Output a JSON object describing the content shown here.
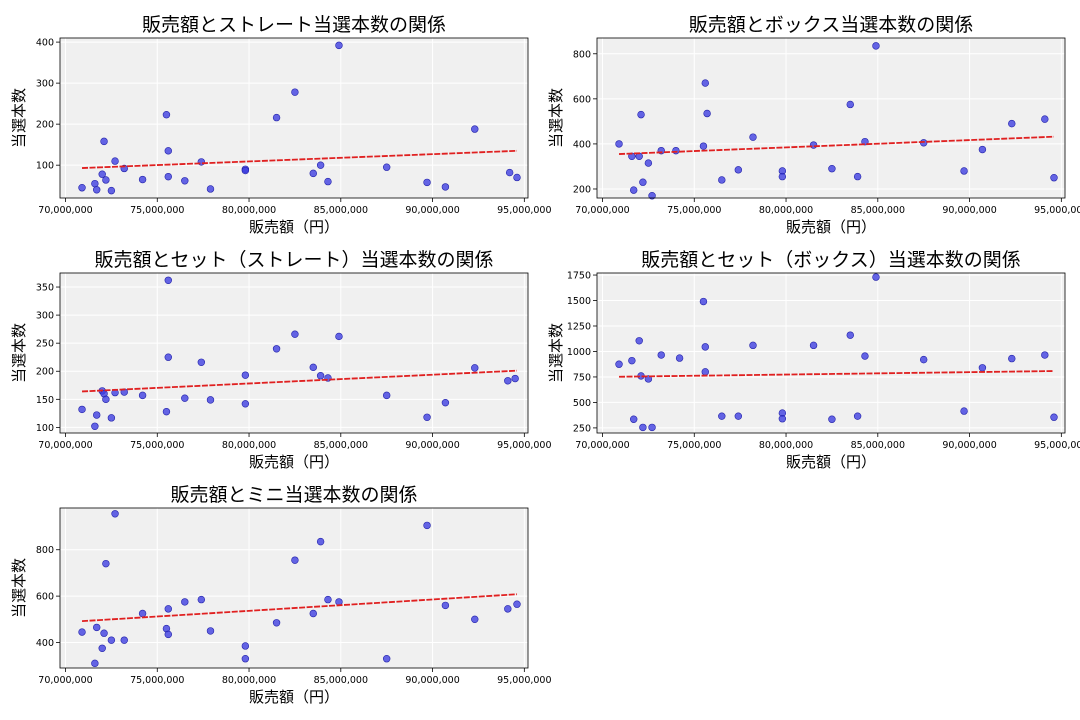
{
  "chart_data": [
    {
      "type": "scatter",
      "title": "販売額とストレート当選本数の関係",
      "xlabel": "販売額（円）",
      "ylabel": "当選本数",
      "xlim": [
        69700000,
        95200000
      ],
      "ylim": [
        20,
        410
      ],
      "xticks": [
        70000000,
        75000000,
        80000000,
        85000000,
        90000000,
        95000000
      ],
      "xtick_labels": [
        "70,000,000",
        "75,000,000",
        "80,000,000",
        "85,000,000",
        "90,000,000",
        "95,000,000"
      ],
      "yticks": [
        100,
        200,
        300,
        400
      ],
      "ytick_labels": [
        "100",
        "200",
        "300",
        "400"
      ],
      "grid": true,
      "points": [
        [
          70900000,
          45
        ],
        [
          71600000,
          55
        ],
        [
          71700000,
          40
        ],
        [
          72000000,
          78
        ],
        [
          72100000,
          158
        ],
        [
          72200000,
          64
        ],
        [
          72500000,
          38
        ],
        [
          72700000,
          110
        ],
        [
          73200000,
          92
        ],
        [
          74200000,
          65
        ],
        [
          75500000,
          223
        ],
        [
          75600000,
          135
        ],
        [
          75600000,
          72
        ],
        [
          76500000,
          62
        ],
        [
          77400000,
          108
        ],
        [
          77900000,
          42
        ],
        [
          79800000,
          90
        ],
        [
          79800000,
          87
        ],
        [
          81500000,
          216
        ],
        [
          82500000,
          278
        ],
        [
          83500000,
          80
        ],
        [
          83900000,
          100
        ],
        [
          84300000,
          60
        ],
        [
          84900000,
          392
        ],
        [
          87500000,
          95
        ],
        [
          89700000,
          58
        ],
        [
          90700000,
          47
        ],
        [
          92300000,
          188
        ],
        [
          94200000,
          82
        ],
        [
          94600000,
          70
        ]
      ],
      "trend": [
        [
          70900000,
          93
        ],
        [
          94600000,
          135
        ]
      ]
    },
    {
      "type": "scatter",
      "title": "販売額とボックス当選本数の関係",
      "xlabel": "販売額（円）",
      "ylabel": "当選本数",
      "xlim": [
        69700000,
        95200000
      ],
      "ylim": [
        160,
        870
      ],
      "xticks": [
        70000000,
        75000000,
        80000000,
        85000000,
        90000000,
        95000000
      ],
      "xtick_labels": [
        "70,000,000",
        "75,000,000",
        "80,000,000",
        "85,000,000",
        "90,000,000",
        "95,000,000"
      ],
      "yticks": [
        200,
        400,
        600,
        800
      ],
      "ytick_labels": [
        "200",
        "400",
        "600",
        "800"
      ],
      "grid": true,
      "points": [
        [
          70900000,
          400
        ],
        [
          71600000,
          345
        ],
        [
          71700000,
          195
        ],
        [
          72000000,
          345
        ],
        [
          72100000,
          530
        ],
        [
          72200000,
          230
        ],
        [
          72500000,
          315
        ],
        [
          72700000,
          170
        ],
        [
          73200000,
          370
        ],
        [
          74000000,
          370
        ],
        [
          75500000,
          390
        ],
        [
          75600000,
          670
        ],
        [
          75700000,
          535
        ],
        [
          76500000,
          240
        ],
        [
          77400000,
          285
        ],
        [
          78200000,
          430
        ],
        [
          79800000,
          280
        ],
        [
          79800000,
          255
        ],
        [
          81500000,
          395
        ],
        [
          82500000,
          290
        ],
        [
          83500000,
          575
        ],
        [
          83900000,
          255
        ],
        [
          84300000,
          410
        ],
        [
          84900000,
          835
        ],
        [
          87500000,
          405
        ],
        [
          89700000,
          280
        ],
        [
          90700000,
          375
        ],
        [
          92300000,
          490
        ],
        [
          94100000,
          510
        ],
        [
          94600000,
          250
        ]
      ],
      "trend": [
        [
          70900000,
          355
        ],
        [
          94600000,
          432
        ]
      ]
    },
    {
      "type": "scatter",
      "title": "販売額とセット（ストレート）当選本数の関係",
      "xlabel": "販売額（円）",
      "ylabel": "当選本数",
      "xlim": [
        69700000,
        95200000
      ],
      "ylim": [
        90,
        375
      ],
      "xticks": [
        70000000,
        75000000,
        80000000,
        85000000,
        90000000,
        95000000
      ],
      "xtick_labels": [
        "70,000,000",
        "75,000,000",
        "80,000,000",
        "85,000,000",
        "90,000,000",
        "95,000,000"
      ],
      "yticks": [
        100,
        150,
        200,
        250,
        300,
        350
      ],
      "ytick_labels": [
        "100",
        "150",
        "200",
        "250",
        "300",
        "350"
      ],
      "grid": true,
      "points": [
        [
          70900000,
          132
        ],
        [
          71600000,
          102
        ],
        [
          71700000,
          122
        ],
        [
          72000000,
          165
        ],
        [
          72100000,
          160
        ],
        [
          72200000,
          150
        ],
        [
          72500000,
          117
        ],
        [
          72700000,
          162
        ],
        [
          73200000,
          163
        ],
        [
          74200000,
          157
        ],
        [
          75500000,
          128
        ],
        [
          75600000,
          225
        ],
        [
          75600000,
          362
        ],
        [
          76500000,
          152
        ],
        [
          77400000,
          216
        ],
        [
          77900000,
          149
        ],
        [
          79800000,
          193
        ],
        [
          79800000,
          142
        ],
        [
          81500000,
          240
        ],
        [
          82500000,
          266
        ],
        [
          83500000,
          207
        ],
        [
          83900000,
          192
        ],
        [
          84300000,
          188
        ],
        [
          84900000,
          262
        ],
        [
          87500000,
          157
        ],
        [
          89700000,
          118
        ],
        [
          90700000,
          144
        ],
        [
          92300000,
          206
        ],
        [
          94100000,
          183
        ],
        [
          94500000,
          187
        ]
      ],
      "trend": [
        [
          70900000,
          164
        ],
        [
          94600000,
          201
        ]
      ]
    },
    {
      "type": "scatter",
      "title": "販売額とセット（ボックス）当選本数の関係",
      "xlabel": "販売額（円）",
      "ylabel": "当選本数",
      "xlim": [
        69700000,
        95200000
      ],
      "ylim": [
        200,
        1770
      ],
      "xticks": [
        70000000,
        75000000,
        80000000,
        85000000,
        90000000,
        95000000
      ],
      "xtick_labels": [
        "70,000,000",
        "75,000,000",
        "80,000,000",
        "85,000,000",
        "90,000,000",
        "95,000,000"
      ],
      "yticks": [
        250,
        500,
        750,
        1000,
        1250,
        1500,
        1750
      ],
      "ytick_labels": [
        "250",
        "500",
        "750",
        "1000",
        "1250",
        "1500",
        "1750"
      ],
      "grid": true,
      "points": [
        [
          70900000,
          875
        ],
        [
          71600000,
          910
        ],
        [
          71700000,
          335
        ],
        [
          72000000,
          1105
        ],
        [
          72100000,
          760
        ],
        [
          72200000,
          255
        ],
        [
          72500000,
          730
        ],
        [
          72700000,
          255
        ],
        [
          73200000,
          965
        ],
        [
          74200000,
          935
        ],
        [
          75500000,
          1490
        ],
        [
          75600000,
          800
        ],
        [
          75600000,
          1045
        ],
        [
          76500000,
          365
        ],
        [
          77400000,
          365
        ],
        [
          78200000,
          1060
        ],
        [
          79800000,
          395
        ],
        [
          79800000,
          340
        ],
        [
          81500000,
          1060
        ],
        [
          82500000,
          335
        ],
        [
          83500000,
          1160
        ],
        [
          83900000,
          365
        ],
        [
          84300000,
          955
        ],
        [
          84900000,
          1730
        ],
        [
          87500000,
          920
        ],
        [
          89700000,
          415
        ],
        [
          90700000,
          840
        ],
        [
          92300000,
          930
        ],
        [
          94100000,
          965
        ],
        [
          94600000,
          355
        ]
      ],
      "trend": [
        [
          70900000,
          752
        ],
        [
          94600000,
          808
        ]
      ]
    },
    {
      "type": "scatter",
      "title": "販売額とミニ当選本数の関係",
      "xlabel": "販売額（円）",
      "ylabel": "当選本数",
      "xlim": [
        69700000,
        95200000
      ],
      "ylim": [
        290,
        980
      ],
      "xticks": [
        70000000,
        75000000,
        80000000,
        85000000,
        90000000,
        95000000
      ],
      "xtick_labels": [
        "70,000,000",
        "75,000,000",
        "80,000,000",
        "85,000,000",
        "90,000,000",
        "95,000,000"
      ],
      "yticks": [
        400,
        600,
        800
      ],
      "ytick_labels": [
        "400",
        "600",
        "800"
      ],
      "grid": true,
      "points": [
        [
          70900000,
          445
        ],
        [
          71600000,
          310
        ],
        [
          71700000,
          465
        ],
        [
          72000000,
          375
        ],
        [
          72100000,
          440
        ],
        [
          72200000,
          740
        ],
        [
          72500000,
          410
        ],
        [
          72700000,
          955
        ],
        [
          73200000,
          410
        ],
        [
          74200000,
          525
        ],
        [
          75500000,
          460
        ],
        [
          75600000,
          435
        ],
        [
          75600000,
          545
        ],
        [
          76500000,
          575
        ],
        [
          77400000,
          585
        ],
        [
          77900000,
          450
        ],
        [
          79800000,
          385
        ],
        [
          79800000,
          330
        ],
        [
          81500000,
          485
        ],
        [
          82500000,
          755
        ],
        [
          83500000,
          525
        ],
        [
          83900000,
          835
        ],
        [
          84300000,
          585
        ],
        [
          84900000,
          575
        ],
        [
          87500000,
          330
        ],
        [
          89700000,
          905
        ],
        [
          90700000,
          560
        ],
        [
          92300000,
          500
        ],
        [
          94100000,
          545
        ],
        [
          94600000,
          565
        ]
      ],
      "trend": [
        [
          70900000,
          492
        ],
        [
          94600000,
          608
        ]
      ]
    }
  ]
}
